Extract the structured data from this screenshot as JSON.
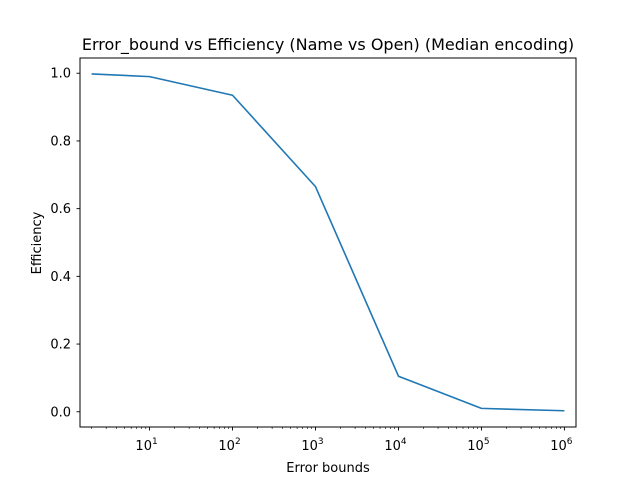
{
  "chart_data": {
    "type": "line",
    "title": "Error_bound vs Efficiency (Name vs Open) (Median encoding)",
    "xlabel": "Error bounds",
    "ylabel": "Efficiency",
    "xscale": "log",
    "xlim": [
      1.45,
      1380000
    ],
    "ylim": [
      -0.045,
      1.045
    ],
    "x_ticks": [
      {
        "base": "10",
        "exp": "1",
        "value": 10
      },
      {
        "base": "10",
        "exp": "2",
        "value": 100
      },
      {
        "base": "10",
        "exp": "3",
        "value": 1000
      },
      {
        "base": "10",
        "exp": "4",
        "value": 10000
      },
      {
        "base": "10",
        "exp": "5",
        "value": 100000
      },
      {
        "base": "10",
        "exp": "6",
        "value": 1000000
      }
    ],
    "y_ticks": [
      {
        "label": "0.0",
        "value": 0.0
      },
      {
        "label": "0.2",
        "value": 0.2
      },
      {
        "label": "0.4",
        "value": 0.4
      },
      {
        "label": "0.6",
        "value": 0.6
      },
      {
        "label": "0.8",
        "value": 0.8
      },
      {
        "label": "1.0",
        "value": 1.0
      }
    ],
    "grid": false,
    "legend": "none",
    "series": [
      {
        "color": "#1f77b4",
        "x": [
          2,
          10,
          100,
          1000,
          10000,
          100000,
          1000000
        ],
        "y": [
          0.998,
          0.99,
          0.935,
          0.665,
          0.105,
          0.01,
          0.003
        ]
      }
    ]
  }
}
